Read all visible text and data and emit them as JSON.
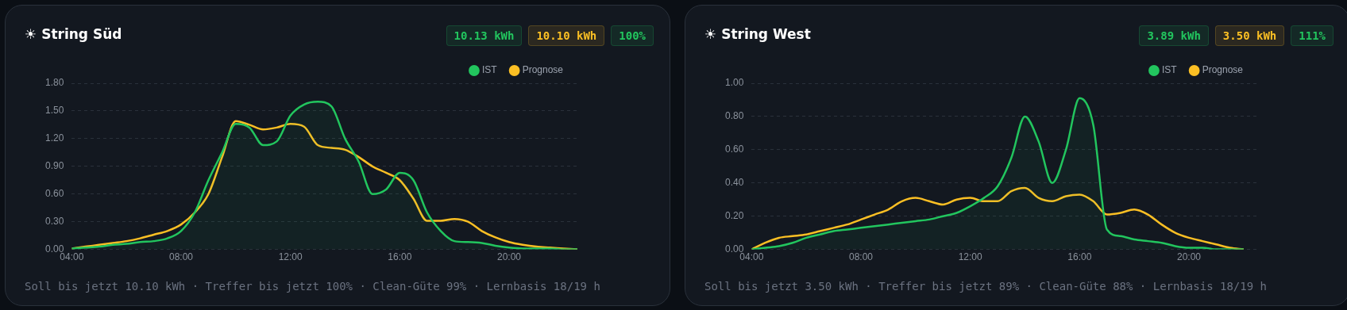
{
  "chart_data": [
    {
      "type": "line",
      "title": "☀ String Süd",
      "annotations": [
        "10.13 kWh",
        "10.10 kWh",
        "100%",
        "Soll bis jetzt 10.10 kWh · Treffer bis jetzt 100% · Clean-Güte 99% · Lernbasis 18/19 h"
      ],
      "x": [
        4,
        4.5,
        5,
        5.5,
        6,
        6.5,
        7,
        7.5,
        8,
        8.5,
        9,
        9.5,
        10,
        10.5,
        11,
        11.5,
        12,
        12.5,
        13,
        13.5,
        14,
        14.5,
        15,
        15.5,
        16,
        16.5,
        17,
        17.5,
        18,
        18.5,
        19,
        19.5,
        20,
        20.5,
        21,
        21.5,
        22,
        22.5
      ],
      "series": [
        {
          "name": "IST",
          "type": "area",
          "color": "#22c55e",
          "values": [
            0.01,
            0.02,
            0.03,
            0.05,
            0.06,
            0.08,
            0.09,
            0.12,
            0.2,
            0.4,
            0.75,
            1.05,
            1.36,
            1.32,
            1.13,
            1.17,
            1.45,
            1.57,
            1.6,
            1.55,
            1.2,
            0.95,
            0.6,
            0.65,
            0.83,
            0.75,
            0.4,
            0.2,
            0.09,
            0.08,
            0.07,
            0.04,
            0.02,
            0.01,
            0.01,
            0.01,
            0,
            0
          ]
        },
        {
          "name": "Prognose",
          "type": "line",
          "color": "#fbbf24",
          "values": [
            0.01,
            0.03,
            0.05,
            0.07,
            0.09,
            0.12,
            0.16,
            0.2,
            0.27,
            0.4,
            0.6,
            1.0,
            1.39,
            1.35,
            1.3,
            1.32,
            1.36,
            1.33,
            1.13,
            1.1,
            1.08,
            1.0,
            0.9,
            0.83,
            0.75,
            0.55,
            0.31,
            0.31,
            0.33,
            0.3,
            0.2,
            0.13,
            0.08,
            0.05,
            0.03,
            0.02,
            0.01,
            0
          ]
        }
      ],
      "xlim": [
        4,
        22.5
      ],
      "xticks": [
        {
          "value": 4,
          "label": "04:00"
        },
        {
          "value": 8,
          "label": "08:00"
        },
        {
          "value": 12,
          "label": "12:00"
        },
        {
          "value": 16,
          "label": "16:00"
        },
        {
          "value": 20,
          "label": "20:00"
        }
      ],
      "ylim": [
        0,
        1.8
      ],
      "yticks": [
        {
          "value": 0,
          "label": "0.00"
        },
        {
          "value": 0.3,
          "label": "0.30"
        },
        {
          "value": 0.6,
          "label": "0.60"
        },
        {
          "value": 0.9,
          "label": "0.90"
        },
        {
          "value": 1.2,
          "label": "1.20"
        },
        {
          "value": 1.5,
          "label": "1.50"
        },
        {
          "value": 1.8,
          "label": "1.80"
        }
      ],
      "grid": "y",
      "legend": "top right",
      "marker": "none"
    },
    {
      "type": "line",
      "title": "☀ String West",
      "annotations": [
        "3.89 kWh",
        "3.50 kWh",
        "111%",
        "Soll bis jetzt 3.50 kWh · Treffer bis jetzt 89% · Clean-Güte 88% · Lernbasis 18/19 h"
      ],
      "x": [
        4,
        4.5,
        5,
        5.5,
        6,
        6.5,
        7,
        7.5,
        8,
        8.5,
        9,
        9.5,
        10,
        10.5,
        11,
        11.5,
        12,
        12.5,
        13,
        13.5,
        14,
        14.5,
        15,
        15.5,
        16,
        16.5,
        17,
        17.5,
        18,
        18.5,
        19,
        19.5,
        20,
        20.5,
        21,
        21.5,
        22
      ],
      "series": [
        {
          "name": "IST",
          "type": "area",
          "color": "#22c55e",
          "values": [
            0,
            0.01,
            0.02,
            0.04,
            0.07,
            0.09,
            0.11,
            0.12,
            0.13,
            0.14,
            0.15,
            0.16,
            0.17,
            0.18,
            0.2,
            0.22,
            0.26,
            0.31,
            0.38,
            0.55,
            0.8,
            0.65,
            0.4,
            0.6,
            0.91,
            0.75,
            0.12,
            0.08,
            0.06,
            0.05,
            0.04,
            0.02,
            0.01,
            0.01,
            0,
            0,
            0
          ]
        },
        {
          "name": "Prognose",
          "type": "line",
          "color": "#fbbf24",
          "values": [
            0,
            0.04,
            0.07,
            0.08,
            0.09,
            0.11,
            0.13,
            0.15,
            0.18,
            0.21,
            0.24,
            0.29,
            0.31,
            0.29,
            0.27,
            0.3,
            0.31,
            0.29,
            0.29,
            0.35,
            0.37,
            0.31,
            0.29,
            0.32,
            0.33,
            0.29,
            0.21,
            0.22,
            0.24,
            0.21,
            0.15,
            0.1,
            0.07,
            0.05,
            0.03,
            0.01,
            0
          ]
        }
      ],
      "xlim": [
        4,
        22.5
      ],
      "xticks": [
        {
          "value": 4,
          "label": "04:00"
        },
        {
          "value": 8,
          "label": "08:00"
        },
        {
          "value": 12,
          "label": "12:00"
        },
        {
          "value": 16,
          "label": "16:00"
        },
        {
          "value": 20,
          "label": "20:00"
        }
      ],
      "ylim": [
        0,
        1
      ],
      "yticks": [
        {
          "value": 0,
          "label": "0.00"
        },
        {
          "value": 0.2,
          "label": "0.20"
        },
        {
          "value": 0.4,
          "label": "0.40"
        },
        {
          "value": 0.6,
          "label": "0.60"
        },
        {
          "value": 0.8,
          "label": "0.80"
        },
        {
          "value": 1,
          "label": "1.00"
        }
      ],
      "grid": "y",
      "legend": "top right",
      "marker": "none"
    }
  ]
}
